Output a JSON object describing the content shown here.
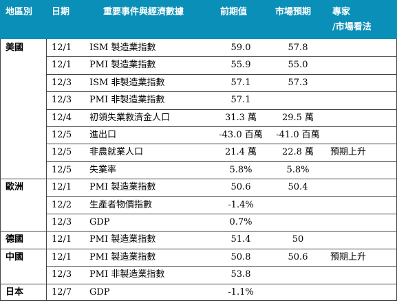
{
  "header": {
    "region": "地區別",
    "date": "日期",
    "event": "重要事件與經濟數據",
    "prev": "前期值",
    "expected": "市場預期",
    "expert_line1": "專家",
    "expert_line2": "/市場看法"
  },
  "rows": [
    {
      "region": "美國",
      "date": "12/1",
      "event": "ISM 製造業指數",
      "prev": "59.0",
      "expected": "57.8",
      "view": ""
    },
    {
      "region": "",
      "date": "12/1",
      "event": "PMI 製造業指數",
      "prev": "55.9",
      "expected": "55.0",
      "view": ""
    },
    {
      "region": "",
      "date": "12/3",
      "event": "ISM 非製造業指數",
      "prev": "57.1",
      "expected": "57.3",
      "view": ""
    },
    {
      "region": "",
      "date": "12/3",
      "event": "PMI 非製造業指數",
      "prev": "57.1",
      "expected": "",
      "view": ""
    },
    {
      "region": "",
      "date": "12/4",
      "event": "初領失業救濟金人口",
      "prev": "31.3 萬",
      "expected": "29.5 萬",
      "view": ""
    },
    {
      "region": "",
      "date": "12/5",
      "event": "進出口",
      "prev": "-43.0 百萬",
      "expected": "-41.0 百萬",
      "view": ""
    },
    {
      "region": "",
      "date": "12/5",
      "event": "非農就業人口",
      "prev": "21.4 萬",
      "expected": "22.8 萬",
      "view": "預期上升"
    },
    {
      "region": "",
      "date": "12/5",
      "event": "失業率",
      "prev": "5.8%",
      "expected": "5.8%",
      "view": ""
    },
    {
      "region": "歐洲",
      "date": "12/1",
      "event": "PMI 製造業指數",
      "prev": "50.6",
      "expected": "50.4",
      "view": ""
    },
    {
      "region": "",
      "date": "12/2",
      "event": "生產者物價指數",
      "prev": "-1.4%",
      "expected": "",
      "view": ""
    },
    {
      "region": "",
      "date": "12/3",
      "event": "GDP",
      "prev": "0.7%",
      "expected": "",
      "view": ""
    },
    {
      "region": "德國",
      "date": "12/1",
      "event": "PMI 製造業指數",
      "prev": "51.4",
      "expected": "50",
      "view": ""
    },
    {
      "region": "中國",
      "date": "12/1",
      "event": "PMI 製造業指數",
      "prev": "50.8",
      "expected": "50.6",
      "view": "預期上升"
    },
    {
      "region": "",
      "date": "12/3",
      "event": "PMI 非製造業指數",
      "prev": "53.8",
      "expected": "",
      "view": ""
    },
    {
      "region": "日本",
      "date": "12/7",
      "event": "GDP",
      "prev": "-1.1%",
      "expected": "",
      "view": ""
    }
  ],
  "colors": {
    "header_bg": "#0a8fb8",
    "header_text": "#ffffff",
    "border": "#444444"
  }
}
